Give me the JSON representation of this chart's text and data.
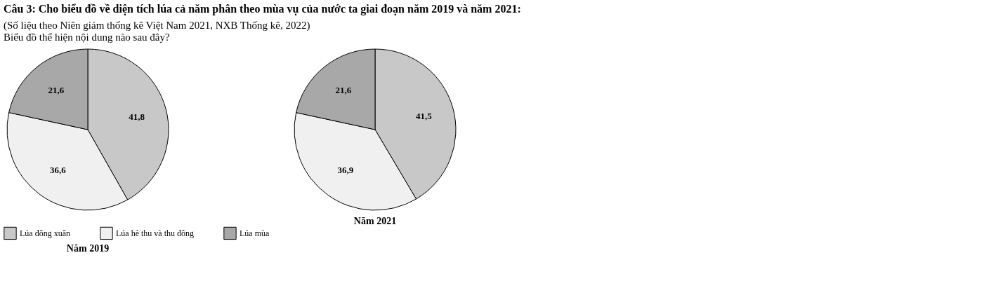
{
  "chart_data": [
    {
      "type": "pie",
      "title": "Câu 3: Cho biểu đồ về diện tích lúa cả năm phân theo mùa vụ của nước ta giai đoạn năm 2019 và năm 2021:",
      "subtitle": "(Số liệu theo Niên giám thống kê Việt Nam 2021, NXB Thống kê, 2022)",
      "annotations": [
        "Biểu đồ thể hiện nội dung nào sau đây?"
      ],
      "xlabel": "Năm 2019",
      "categories": [
        "Lúa đông xuân",
        "Lúa hè thu và thu đông",
        "Lúa mùa"
      ],
      "values": [
        41.8,
        36.6,
        21.6
      ],
      "value_labels": [
        "41,8",
        "36,6",
        "21,6"
      ],
      "colors": [
        "#c8c8c8",
        "#f0f0f0",
        "#a8a8a8"
      ],
      "legend": "bottom"
    },
    {
      "type": "pie",
      "xlabel": "Năm 2021",
      "categories": [
        null,
        null,
        null
      ],
      "values": [
        41.5,
        36.9,
        21.6
      ],
      "value_labels": [
        "41,5",
        "36,9",
        "21,6"
      ],
      "colors": [
        "#c8c8c8",
        "#f0f0f0",
        "#a8a8a8"
      ]
    }
  ]
}
